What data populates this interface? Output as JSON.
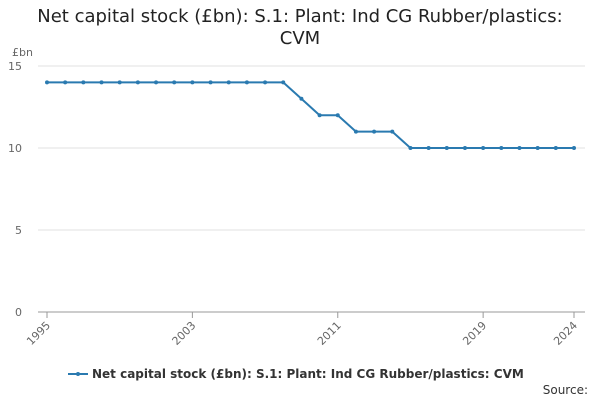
{
  "chart_data": {
    "type": "line",
    "title": "Net capital stock (£bn): S.1: Plant: Ind CG Rubber/plastics: CVM",
    "y_label": "£bn",
    "source": "Source:",
    "x": [
      1995,
      1996,
      1997,
      1998,
      1999,
      2000,
      2001,
      2002,
      2003,
      2004,
      2005,
      2006,
      2007,
      2008,
      2009,
      2010,
      2011,
      2012,
      2013,
      2014,
      2015,
      2016,
      2017,
      2018,
      2019,
      2020,
      2021,
      2022,
      2023,
      2024
    ],
    "series": [
      {
        "name": "Net capital stock (£bn): S.1: Plant: Ind CG Rubber/plastics: CVM",
        "color": "#2a7ab0",
        "values": [
          14,
          14,
          14,
          14,
          14,
          14,
          14,
          14,
          14,
          14,
          14,
          14,
          14,
          14,
          13,
          12,
          12,
          11,
          11,
          11,
          10,
          10,
          10,
          10,
          10,
          10,
          10,
          10,
          10,
          10
        ]
      }
    ],
    "xlim": [
      1995,
      2024
    ],
    "xticks": [
      1995,
      2003,
      2011,
      2019,
      2024
    ],
    "ylim": [
      0,
      15
    ],
    "yticks": [
      0,
      5,
      10,
      15
    ],
    "grid": true
  }
}
